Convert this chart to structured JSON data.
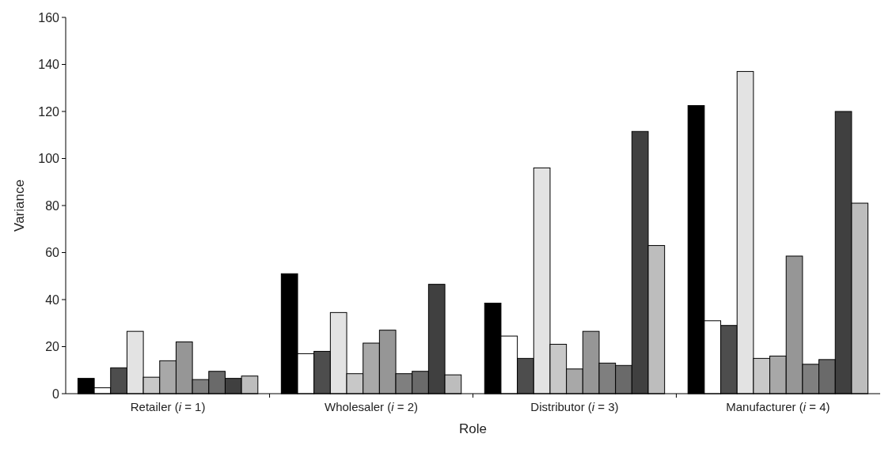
{
  "chart_data": {
    "type": "bar",
    "xlabel": "Role",
    "ylabel": "Variance",
    "categories": [
      "Retailer (i = 1)",
      "Wholesaler (i = 2)",
      "Distributor (i = 3)",
      "Manufacturer (i = 4)"
    ],
    "series": [
      {
        "color": "#000000",
        "values": [
          6.5,
          51,
          38.5,
          122.5
        ]
      },
      {
        "color": "#ffffff",
        "values": [
          2.5,
          17,
          24.5,
          31
        ]
      },
      {
        "color": "#4d4d4d",
        "values": [
          11,
          18,
          15,
          29
        ]
      },
      {
        "color": "#e3e3e3",
        "values": [
          26.5,
          34.5,
          96,
          137
        ]
      },
      {
        "color": "#c8c8c8",
        "values": [
          7,
          8.5,
          21,
          15
        ]
      },
      {
        "color": "#a8a8a8",
        "values": [
          14,
          21.5,
          10.5,
          16
        ]
      },
      {
        "color": "#969696",
        "values": [
          22,
          27,
          26.5,
          58.5
        ]
      },
      {
        "color": "#7f7f7f",
        "values": [
          6,
          8.5,
          13,
          12.5
        ]
      },
      {
        "color": "#6a6a6a",
        "values": [
          9.5,
          9.5,
          12,
          14.5
        ]
      },
      {
        "color": "#404040",
        "values": [
          6.5,
          46.5,
          111.5,
          120
        ]
      },
      {
        "color": "#bdbdbd",
        "values": [
          7.5,
          8,
          63,
          81
        ]
      }
    ],
    "ylim": [
      0,
      160
    ],
    "yticks": [
      0,
      20,
      40,
      60,
      80,
      100,
      120,
      140,
      160
    ],
    "grid": false
  }
}
